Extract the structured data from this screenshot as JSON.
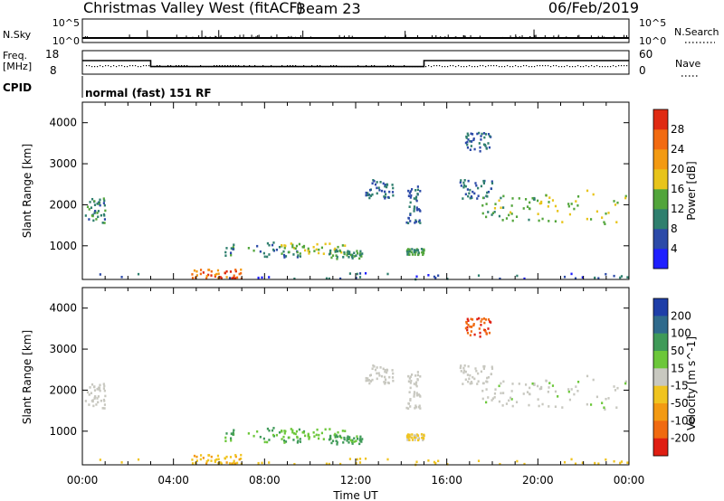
{
  "header": {
    "radar": "Christmas Valley West (fitACF)",
    "beam": "Beam 23",
    "date": "06/Feb/2019"
  },
  "noise_panel": {
    "left_label": "N.Sky",
    "right_label": "N.Search",
    "tick_top": "10^5",
    "tick_bottom": "10^0"
  },
  "freq_panel": {
    "left_label_1": "Freq.",
    "left_label_2": "[MHz]",
    "left_ticks": [
      "18",
      "8"
    ],
    "right_label": "Nave",
    "right_ticks": [
      "60",
      "0"
    ]
  },
  "cpid": {
    "label": "CPID",
    "mode": "normal (fast) 151 RF"
  },
  "chart_data": {
    "type": "heatmap",
    "xlabel": "Time UT",
    "ylabel": "Slant Range [km]",
    "x_ticks": [
      "00:00",
      "04:00",
      "08:00",
      "12:00",
      "16:00",
      "20:00",
      "00:00"
    ],
    "x_range_hours": [
      0,
      24
    ],
    "y_ticks": [
      "1000",
      "2000",
      "3000",
      "4000"
    ],
    "y_range_km": [
      180,
      4500
    ],
    "freq_steps": [
      {
        "start_h": 0,
        "end_h": 3,
        "freq_mhz": 14.5
      },
      {
        "start_h": 3,
        "end_h": 15,
        "freq_mhz": 11.2
      },
      {
        "start_h": 15,
        "end_h": 24,
        "freq_mhz": 14.5
      }
    ],
    "scatter_regions": [
      {
        "t0": 0.1,
        "t1": 1.0,
        "r0": 1550,
        "r1": 2150,
        "power": 10,
        "velocity": 0
      },
      {
        "t0": 6.2,
        "t1": 9.8,
        "r0": 720,
        "r1": 1100,
        "power": 10,
        "velocity": 55
      },
      {
        "t0": 8.5,
        "t1": 11.5,
        "r0": 800,
        "r1": 1060,
        "power": 16,
        "velocity": 30
      },
      {
        "t0": 10.8,
        "t1": 12.3,
        "r0": 680,
        "r1": 900,
        "power": 12,
        "velocity": 60
      },
      {
        "t0": 14.2,
        "t1": 15.0,
        "r0": 780,
        "r1": 930,
        "power": 12,
        "velocity": -20
      },
      {
        "t0": 12.4,
        "t1": 13.6,
        "r0": 2150,
        "r1": 2600,
        "power": 8,
        "velocity": 0
      },
      {
        "t0": 14.2,
        "t1": 14.8,
        "r0": 1550,
        "r1": 2450,
        "power": 8,
        "velocity": 0
      },
      {
        "t0": 16.5,
        "t1": 18.0,
        "r0": 2150,
        "r1": 2600,
        "power": 8,
        "velocity": 0
      },
      {
        "t0": 17.5,
        "t1": 20.0,
        "r0": 1600,
        "r1": 2250,
        "power": 14,
        "velocity": 5
      },
      {
        "t0": 20.0,
        "t1": 23.9,
        "r0": 1500,
        "r1": 2350,
        "power": 16,
        "velocity": 5
      },
      {
        "t0": 16.8,
        "t1": 17.9,
        "r0": 3300,
        "r1": 3750,
        "power": 8,
        "velocity": -200
      },
      {
        "t0": 4.6,
        "t1": 7.0,
        "r0": 200,
        "r1": 420,
        "power": 26,
        "velocity": -40
      },
      {
        "t0": 0.0,
        "t1": 24.0,
        "r0": 180,
        "r1": 330,
        "power": 6,
        "velocity": -30
      }
    ],
    "power_colorbar": {
      "label": "Power [dB]",
      "ticks": [
        "4",
        "8",
        "12",
        "16",
        "20",
        "24",
        "28"
      ],
      "colors": [
        "#1f1fff",
        "#2c4aa8",
        "#2f7f6e",
        "#52a53b",
        "#e8c41a",
        "#f39a12",
        "#f26a10",
        "#e02a12"
      ]
    },
    "velocity_colorbar": {
      "label": "Velocity [m s^-1]",
      "ticks": [
        "200",
        "100",
        "50",
        "15",
        "-15",
        "-50",
        "-100",
        "-200"
      ],
      "colors": [
        "#1e3ea8",
        "#2f6a8c",
        "#3f9a58",
        "#6cc73a",
        "#c8c8c0",
        "#f0c420",
        "#f39a12",
        "#f06a10",
        "#e01e12"
      ]
    }
  }
}
